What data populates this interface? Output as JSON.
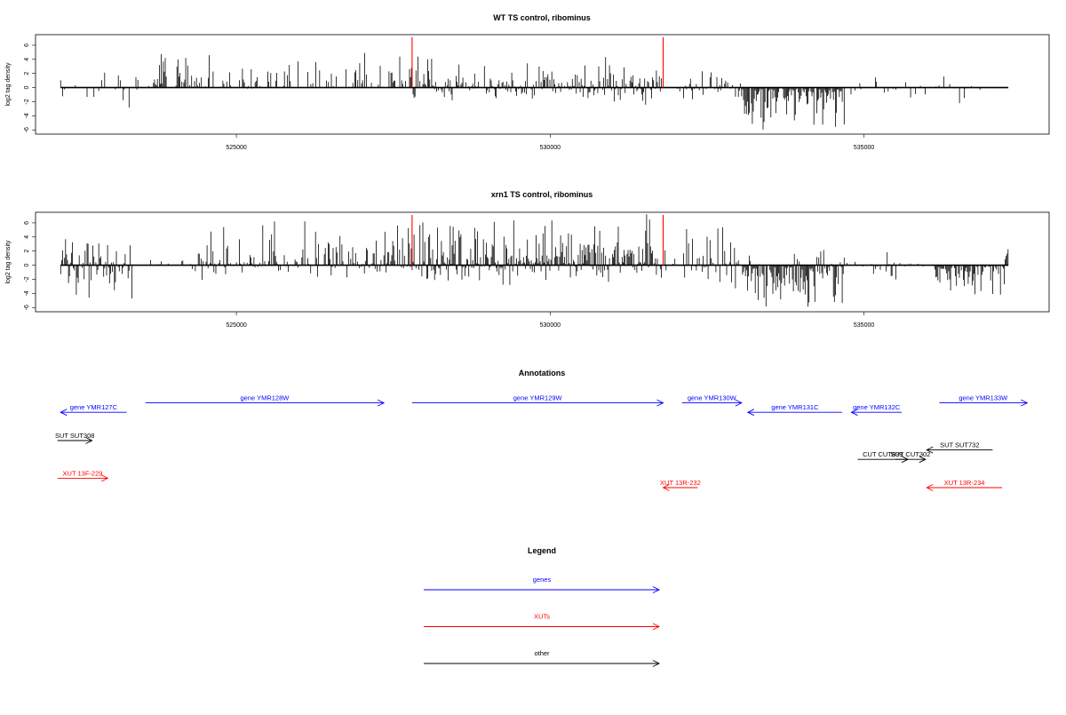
{
  "colors": {
    "gene": "#0000ff",
    "xut": "#ff0000",
    "other": "#000000",
    "marker": "#ff0000",
    "bars": "#000000"
  },
  "chart_data": [
    {
      "type": "bar",
      "title": "WT TS control, ribominus",
      "ylabel": "log2 tag density",
      "xlabel": "",
      "xlim": [
        521800,
        537950
      ],
      "ylim": [
        -6.6,
        7.5
      ],
      "x_ticks": [
        525000,
        530000,
        535000
      ],
      "x_tick_labels": [
        "525000",
        "530000",
        "535000"
      ],
      "y_ticks": [
        -6,
        -4,
        -2,
        0,
        2,
        4,
        6
      ],
      "y_tick_labels": [
        "-6",
        "-4",
        "-2",
        "0",
        "2",
        "4",
        "6"
      ],
      "marker_lines": [
        527800,
        531800
      ],
      "grid": false,
      "legend": "none",
      "segments": [
        {
          "x0": 522200,
          "x1": 523350,
          "density": 0.3,
          "min": -3.3,
          "max": 2.6
        },
        {
          "x0": 523400,
          "x1": 527800,
          "density": 0.45,
          "min": -0.5,
          "max": 5.1
        },
        {
          "x0": 527800,
          "x1": 531800,
          "density": 0.8,
          "min": -2.5,
          "max": 4.4
        },
        {
          "x0": 531800,
          "x1": 533050,
          "density": 0.35,
          "min": -3.5,
          "max": 4.3
        },
        {
          "x0": 533050,
          "x1": 534700,
          "density": 0.95,
          "min": -6.0,
          "max": 0.3
        },
        {
          "x0": 534700,
          "x1": 537300,
          "density": 0.2,
          "min": -2.8,
          "max": 1.6
        }
      ]
    },
    {
      "type": "bar",
      "title": "xrn1 TS control, ribominus",
      "ylabel": "log2 tag density",
      "xlabel": "",
      "xlim": [
        521800,
        537950
      ],
      "ylim": [
        -6.6,
        7.5
      ],
      "x_ticks": [
        525000,
        530000,
        535000
      ],
      "x_tick_labels": [
        "525000",
        "530000",
        "535000"
      ],
      "y_ticks": [
        -6,
        -4,
        -2,
        0,
        2,
        4,
        6
      ],
      "y_tick_labels": [
        "-6",
        "-4",
        "-2",
        "0",
        "2",
        "4",
        "6"
      ],
      "marker_lines": [
        527800,
        531800
      ],
      "grid": false,
      "legend": "none",
      "segments": [
        {
          "x0": 522200,
          "x1": 523350,
          "density": 0.9,
          "min": -5.0,
          "max": 3.7
        },
        {
          "x0": 523400,
          "x1": 524300,
          "density": 0.2,
          "min": -0.2,
          "max": 2.0
        },
        {
          "x0": 524300,
          "x1": 527800,
          "density": 0.7,
          "min": -2.3,
          "max": 6.3
        },
        {
          "x0": 527800,
          "x1": 531800,
          "density": 1.0,
          "min": -2.8,
          "max": 7.3
        },
        {
          "x0": 531800,
          "x1": 533050,
          "density": 0.6,
          "min": -3.5,
          "max": 5.5
        },
        {
          "x0": 533050,
          "x1": 534700,
          "density": 1.0,
          "min": -6.2,
          "max": 2.5
        },
        {
          "x0": 534700,
          "x1": 535600,
          "density": 0.5,
          "min": -2.5,
          "max": 2.1
        },
        {
          "x0": 535600,
          "x1": 536100,
          "density": 0.1,
          "min": -0.5,
          "max": 0.5
        },
        {
          "x0": 536100,
          "x1": 537250,
          "density": 0.95,
          "min": -4.6,
          "max": 0.3
        },
        {
          "x0": 537250,
          "x1": 537300,
          "density": 1.0,
          "min": 0,
          "max": 2.8
        }
      ]
    }
  ],
  "annotations": {
    "title": "Annotations",
    "items": [
      {
        "label": "gene YMR127C",
        "type": "gene",
        "dir": "rev",
        "x0": 522200,
        "x1": 523250,
        "row": 2
      },
      {
        "label": "gene YMR128W",
        "type": "gene",
        "dir": "fwd",
        "x0": 523550,
        "x1": 527350,
        "row": 1
      },
      {
        "label": "gene YMR129W",
        "type": "gene",
        "dir": "fwd",
        "x0": 527800,
        "x1": 531800,
        "row": 1
      },
      {
        "label": "gene YMR130W",
        "type": "gene",
        "dir": "fwd",
        "x0": 532100,
        "x1": 533050,
        "row": 1
      },
      {
        "label": "gene YMR131C",
        "type": "gene",
        "dir": "rev",
        "x0": 533150,
        "x1": 534650,
        "row": 2
      },
      {
        "label": "gene YMR132C",
        "type": "gene",
        "dir": "rev",
        "x0": 534800,
        "x1": 535600,
        "row": 2
      },
      {
        "label": "gene YMR133W",
        "type": "gene",
        "dir": "fwd",
        "x0": 536200,
        "x1": 537600,
        "row": 1
      },
      {
        "label": "SUT SUT308",
        "type": "other",
        "dir": "fwd",
        "x0": 522150,
        "x1": 522700,
        "row": 5
      },
      {
        "label": "SUT SUT732",
        "type": "other",
        "dir": "rev",
        "x0": 536000,
        "x1": 537050,
        "row": 6
      },
      {
        "label": "CUT CUT839",
        "type": "other",
        "dir": "fwd",
        "x0": 534900,
        "x1": 535700,
        "row": 7
      },
      {
        "label": "SUT CUT302",
        "type": "other",
        "dir": "fwd",
        "x0": 535500,
        "x1": 535980,
        "row": 7
      },
      {
        "label": "XUT 13F-229",
        "type": "xut",
        "dir": "fwd",
        "x0": 522150,
        "x1": 522950,
        "row": 9
      },
      {
        "label": "XUT 13R-232",
        "type": "xut",
        "dir": "rev",
        "x0": 531800,
        "x1": 532350,
        "row": 10
      },
      {
        "label": "XUT 13R-234",
        "type": "xut",
        "dir": "rev",
        "x0": 536000,
        "x1": 537200,
        "row": 10
      }
    ]
  },
  "legend": {
    "title": "Legend",
    "items": [
      {
        "label": "genes",
        "type": "gene"
      },
      {
        "label": "XUTs",
        "type": "xut"
      },
      {
        "label": "other",
        "type": "other"
      }
    ]
  }
}
